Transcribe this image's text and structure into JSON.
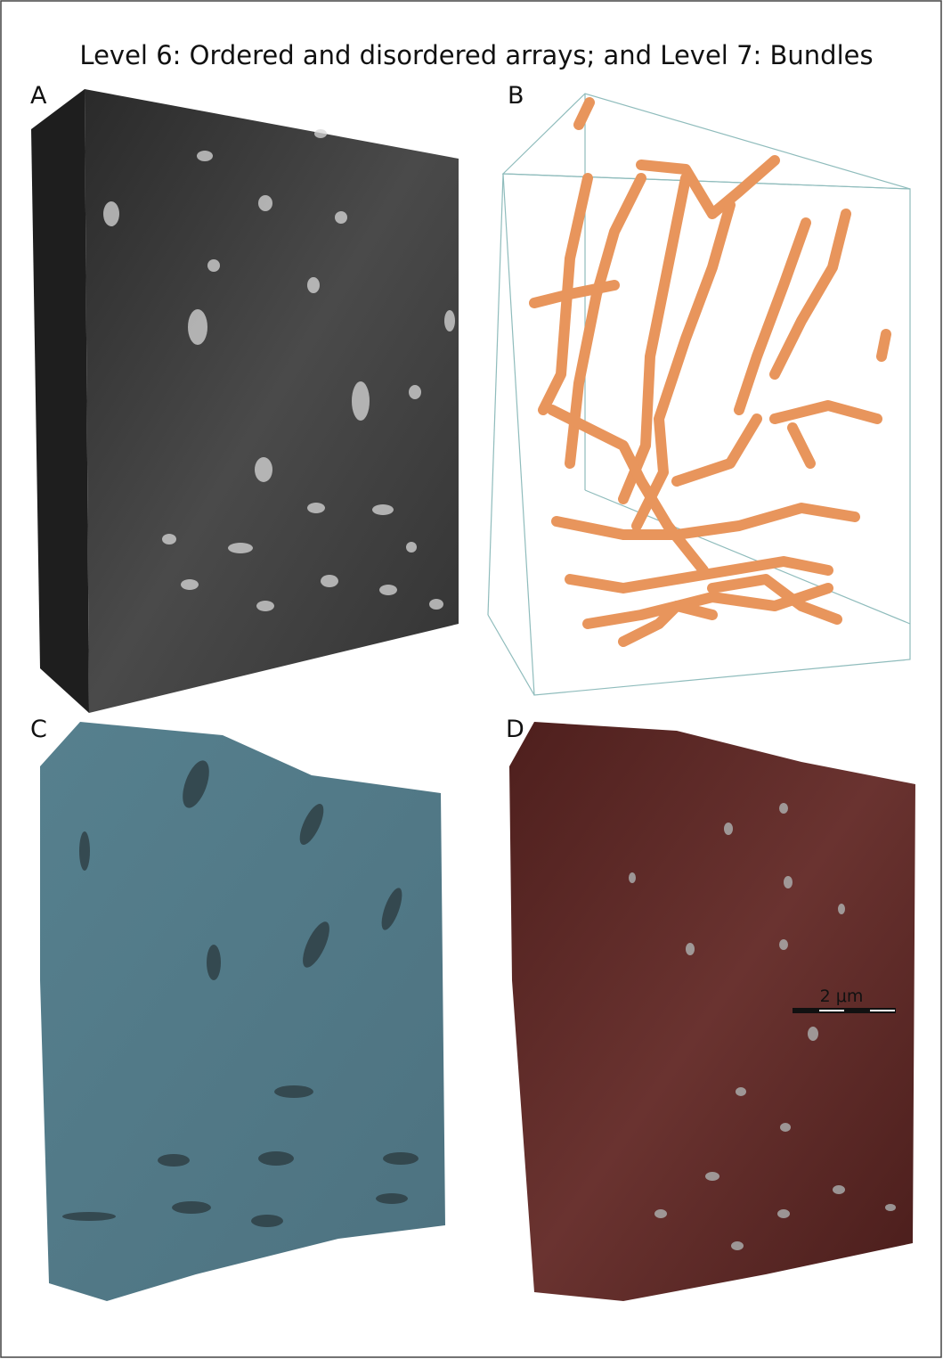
{
  "figure": {
    "title": "Level 6: Ordered and disordered arrays; and Level 7: Bundles",
    "panels": [
      {
        "label": "A"
      },
      {
        "label": "B"
      },
      {
        "label": "C"
      },
      {
        "label": "D"
      }
    ],
    "scale_bar": {
      "label": "2 μm"
    }
  }
}
